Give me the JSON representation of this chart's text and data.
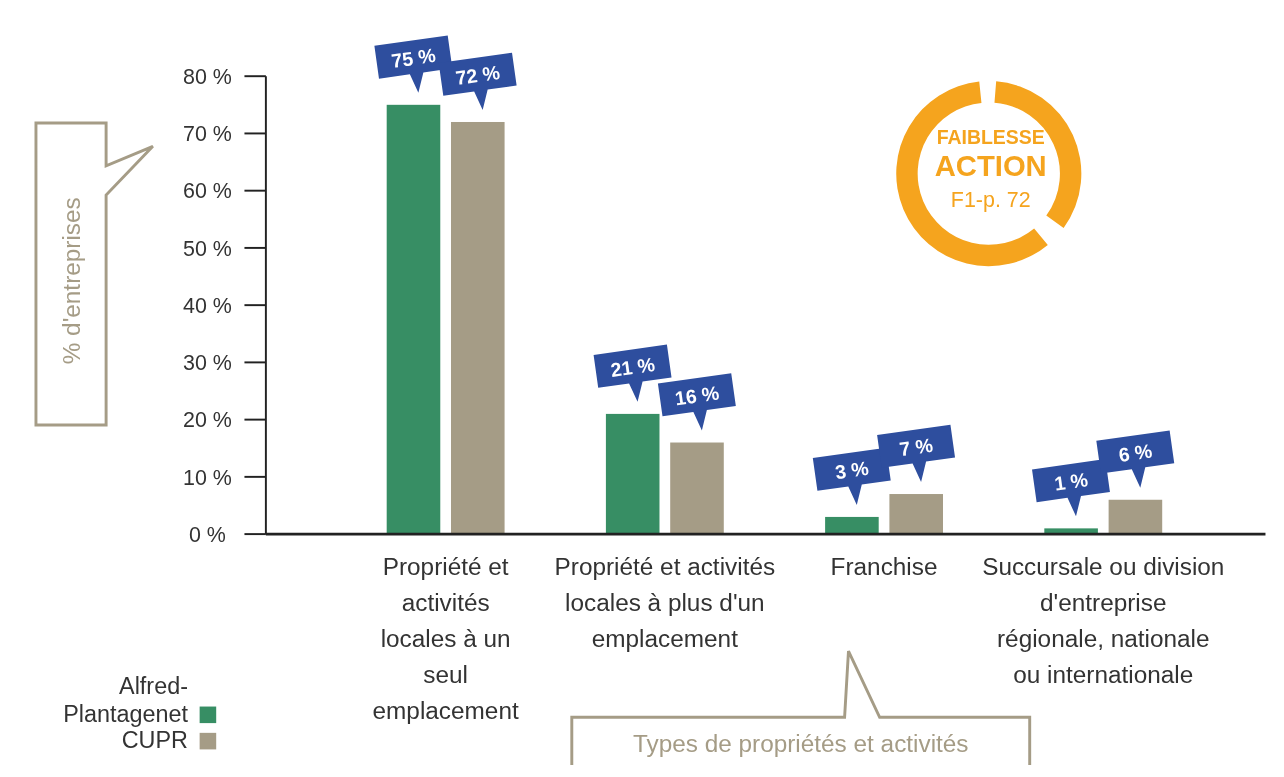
{
  "chart_data": {
    "type": "bar",
    "ylabel": "% d'entreprises",
    "xlabel": "Types de propriétés et activités",
    "categories": [
      "Propriété et activités locales à un seul emplacement",
      "Propriété et activités locales à plus d'un emplacement",
      "Franchise",
      "Succursale ou division d'entreprise régionale, nationale ou internationale"
    ],
    "series": [
      {
        "name": "Alfred-Plantagenet",
        "color": "#378e64",
        "values": [
          75,
          21,
          3,
          1
        ],
        "value_labels": [
          "75 %",
          "21 %",
          "3 %",
          "1 %"
        ]
      },
      {
        "name": "CUPR",
        "color": "#a59c86",
        "values": [
          72,
          16,
          7,
          6
        ],
        "value_labels": [
          "72 %",
          "16 %",
          "7 %",
          "6 %"
        ]
      }
    ],
    "ylim": [
      0,
      80
    ],
    "yticks": [
      {
        "value": 0,
        "label": "0 %"
      },
      {
        "value": 10,
        "label": "10 %"
      },
      {
        "value": 20,
        "label": "20 %"
      },
      {
        "value": 30,
        "label": "30 %"
      },
      {
        "value": 40,
        "label": "40 %"
      },
      {
        "value": 50,
        "label": "50 %"
      },
      {
        "value": 60,
        "label": "60 %"
      },
      {
        "value": 70,
        "label": "70 %"
      },
      {
        "value": 80,
        "label": "80 %"
      }
    ],
    "legend": "bottom left",
    "annotations": [
      "FAIBLESSE",
      "ACTION",
      "F1-p. 72"
    ]
  }
}
